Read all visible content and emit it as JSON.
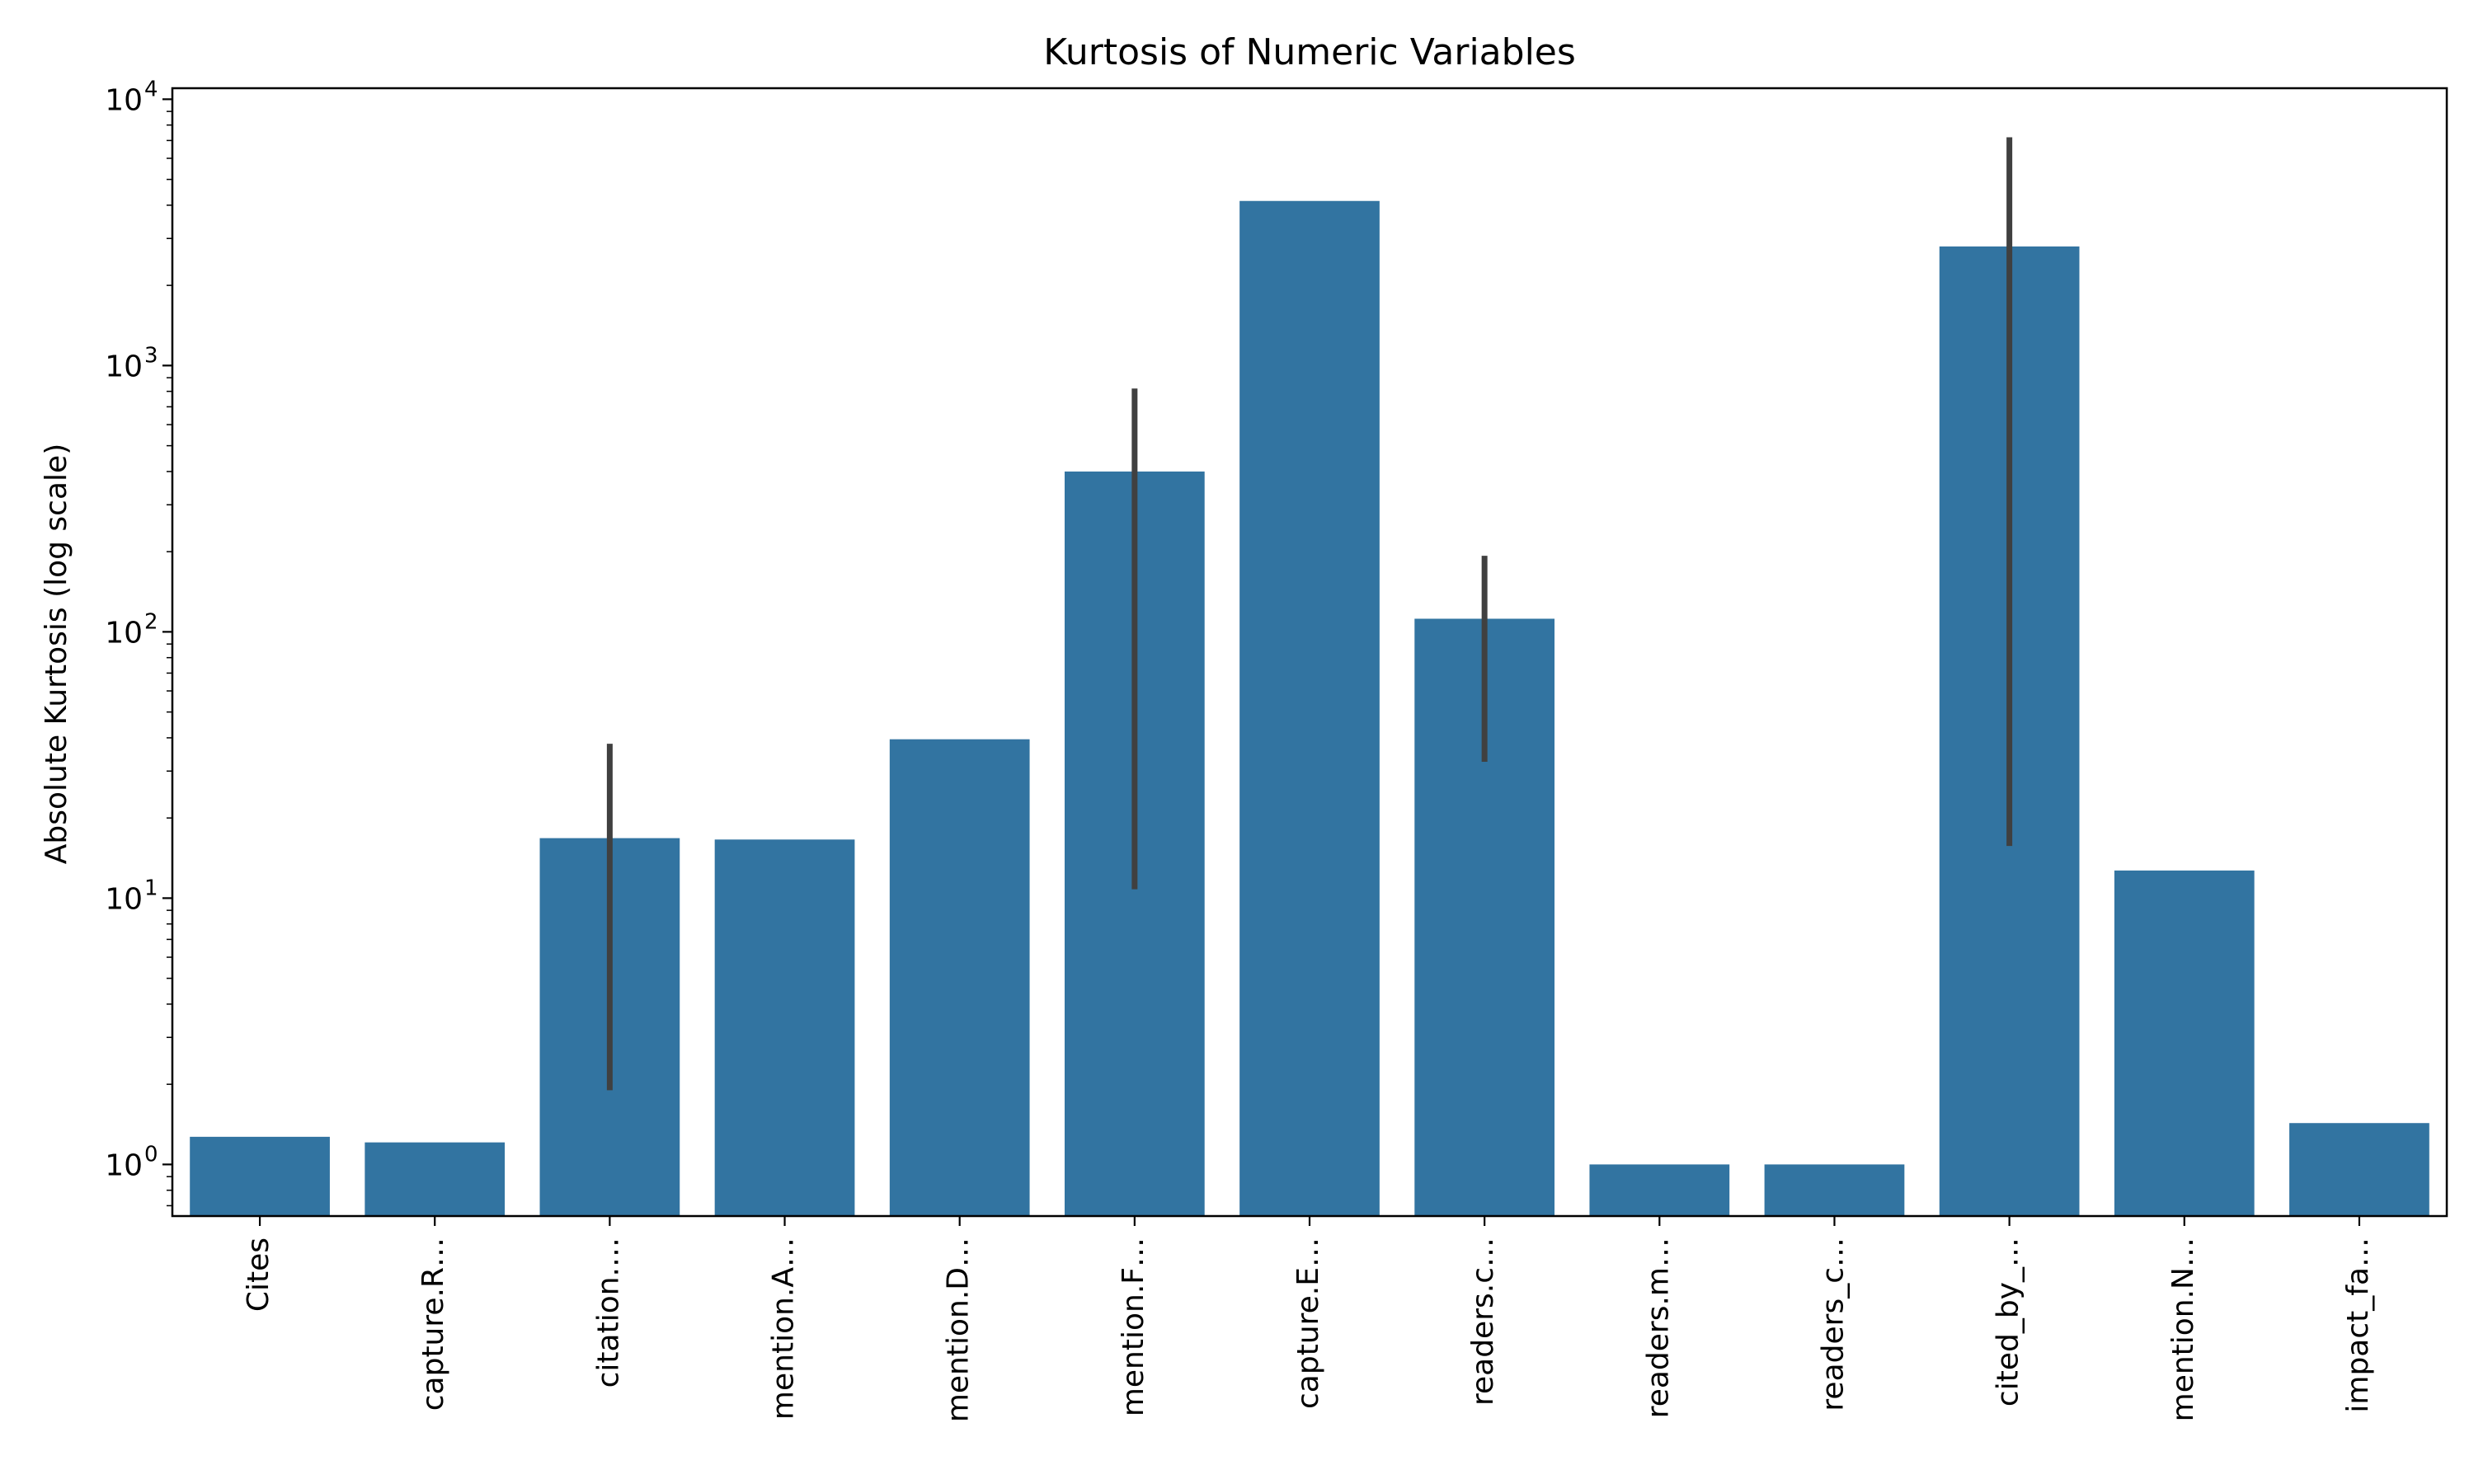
{
  "chart_data": {
    "type": "bar",
    "title": "Kurtosis of Numeric Variables",
    "xlabel": "",
    "ylabel": "Absolute Kurtosis (log scale)",
    "yscale": "log",
    "ylim": [
      0.64,
      11000
    ],
    "yticks": [
      {
        "value": 1,
        "base": "10",
        "exp": "0"
      },
      {
        "value": 10,
        "base": "10",
        "exp": "1"
      },
      {
        "value": 100,
        "base": "10",
        "exp": "2"
      },
      {
        "value": 1000,
        "base": "10",
        "exp": "3"
      },
      {
        "value": 10000,
        "base": "10",
        "exp": "4"
      }
    ],
    "categories": [
      "Cites",
      "capture.R…",
      "citation.…",
      "mention.A…",
      "mention.D…",
      "mention.F…",
      "capture.E…",
      "readers.c…",
      "readers.m…",
      "readers_c…",
      "cited_by_…",
      "mention.N…",
      "impact_fa…"
    ],
    "values": [
      1.27,
      1.21,
      16.8,
      16.6,
      39.5,
      400,
      4150,
      112,
      1.0,
      1.0,
      2800,
      12.7,
      1.43
    ],
    "error_bars": [
      null,
      null,
      [
        1.9,
        38
      ],
      null,
      null,
      [
        10.8,
        820
      ],
      null,
      [
        32.5,
        193
      ],
      null,
      null,
      [
        15.7,
        7200
      ],
      null,
      null
    ],
    "grid": false,
    "legend": "none",
    "colors": {
      "bar": "#3274a1",
      "error_bar": "#404040",
      "axis": "#000000"
    }
  }
}
